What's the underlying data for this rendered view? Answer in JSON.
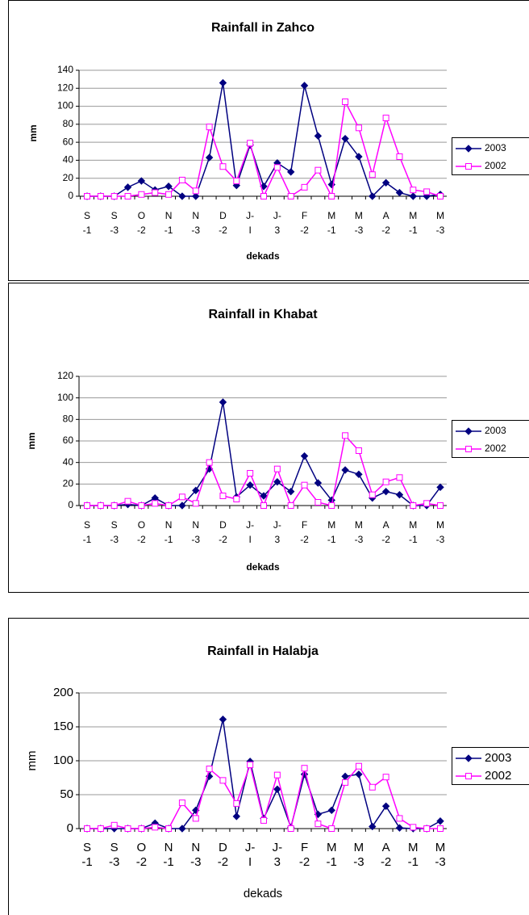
{
  "chart_data": [
    {
      "type": "line",
      "title": "Rainfall in Zahco",
      "x_label": "dekads",
      "y_label": "mm",
      "categories": [
        "S\n-1",
        null,
        "S\n-3",
        null,
        "O\n-2",
        null,
        "N\n-1",
        null,
        "N\n-3",
        null,
        "D\n-2",
        null,
        "J-\nI",
        null,
        "J-\n3",
        null,
        "F\n-2",
        null,
        "M\n-1",
        null,
        "M\n-3",
        null,
        "A\n-2",
        null,
        "M\n-1",
        null,
        "M\n-3"
      ],
      "series": [
        {
          "name": "2003",
          "color": "#000080",
          "marker": "diamond",
          "values": [
            0,
            0,
            0,
            10,
            17,
            7,
            11,
            0,
            0,
            43,
            126,
            12,
            57,
            11,
            37,
            27,
            123,
            67,
            13,
            64,
            44,
            0,
            15,
            4,
            0,
            0,
            2
          ]
        },
        {
          "name": "2002",
          "color": "#ff00ff",
          "marker": "square",
          "values": [
            0,
            0,
            0,
            0,
            2,
            4,
            2,
            18,
            6,
            77,
            33,
            17,
            59,
            0,
            32,
            0,
            10,
            29,
            0,
            105,
            76,
            24,
            87,
            44,
            7,
            5,
            0
          ]
        }
      ],
      "ylim": [
        0,
        140
      ],
      "yticks": [
        0,
        20,
        40,
        60,
        80,
        100,
        120,
        140
      ],
      "grid": true,
      "legend": "right"
    },
    {
      "type": "line",
      "title": "Rainfall in Khabat",
      "x_label": "dekads",
      "y_label": "mm",
      "categories": [
        "S\n-1",
        null,
        "S\n-3",
        null,
        "O\n-2",
        null,
        "N\n-1",
        null,
        "N\n-3",
        null,
        "D\n-2",
        null,
        "J-\nI",
        null,
        "J-\n3",
        null,
        "F\n-2",
        null,
        "M\n-1",
        null,
        "M\n-3",
        null,
        "A\n-2",
        null,
        "M\n-1",
        null,
        "M\n-3"
      ],
      "series": [
        {
          "name": "2003",
          "color": "#000080",
          "marker": "diamond",
          "values": [
            0,
            0,
            0,
            1,
            0,
            7,
            0,
            0,
            14,
            34,
            96,
            8,
            19,
            9,
            22,
            13,
            46,
            21,
            5,
            33,
            29,
            7,
            13,
            10,
            0,
            0,
            17
          ]
        },
        {
          "name": "2002",
          "color": "#ff00ff",
          "marker": "square",
          "values": [
            0,
            0,
            0,
            4,
            0,
            2,
            0,
            8,
            2,
            40,
            9,
            6,
            30,
            0,
            34,
            0,
            19,
            3,
            0,
            65,
            51,
            10,
            22,
            26,
            0,
            2,
            0
          ]
        }
      ],
      "ylim": [
        0,
        120
      ],
      "yticks": [
        0,
        20,
        40,
        60,
        80,
        100,
        120
      ],
      "grid": true,
      "legend": "right"
    },
    {
      "type": "line",
      "title": "Rainfall in Halabja",
      "x_label": "dekads",
      "y_label": "mm",
      "categories": [
        "S\n-1",
        null,
        "S\n-3",
        null,
        "O\n-2",
        null,
        "N\n-1",
        null,
        "N\n-3",
        null,
        "D\n-2",
        null,
        "J-\nI",
        null,
        "J-\n3",
        null,
        "F\n-2",
        null,
        "M\n-1",
        null,
        "M\n-3",
        null,
        "A\n-2",
        null,
        "M\n-1",
        null,
        "M\n-3"
      ],
      "series": [
        {
          "name": "2003",
          "color": "#000080",
          "marker": "diamond",
          "values": [
            0,
            0,
            0,
            0,
            0,
            8,
            0,
            0,
            27,
            77,
            161,
            18,
            99,
            15,
            58,
            2,
            80,
            21,
            27,
            77,
            80,
            3,
            33,
            1,
            0,
            0,
            11
          ]
        },
        {
          "name": "2002",
          "color": "#ff00ff",
          "marker": "square",
          "values": [
            0,
            0,
            5,
            0,
            0,
            2,
            0,
            38,
            15,
            88,
            71,
            37,
            94,
            12,
            79,
            0,
            89,
            7,
            0,
            68,
            92,
            61,
            76,
            15,
            2,
            0,
            0
          ]
        }
      ],
      "ylim": [
        0,
        200
      ],
      "yticks": [
        0,
        50,
        100,
        150,
        200
      ],
      "grid": true,
      "legend": "right"
    }
  ]
}
